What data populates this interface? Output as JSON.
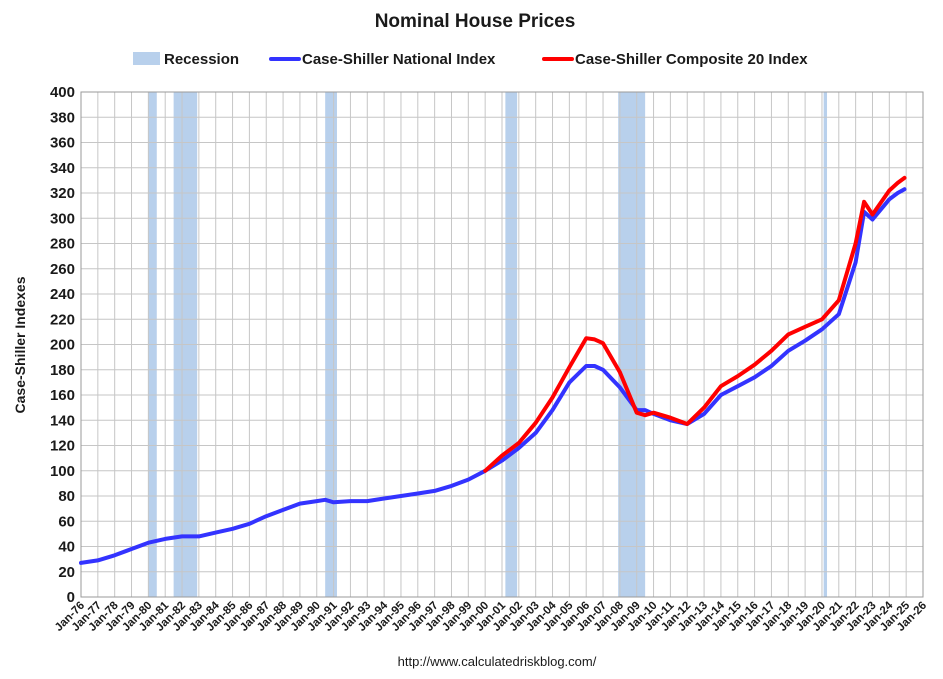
{
  "chart_data": {
    "type": "line",
    "title": "Nominal House Prices",
    "ylabel": "Case-Shiller Indexes",
    "xlabel": "",
    "ylim": [
      0,
      400
    ],
    "yticks": [
      0,
      20,
      40,
      60,
      80,
      100,
      120,
      140,
      160,
      180,
      200,
      220,
      240,
      260,
      280,
      300,
      320,
      340,
      360,
      380,
      400
    ],
    "xlim": [
      1976,
      2026
    ],
    "xtick_labels": [
      "Jan-76",
      "Jan-77",
      "Jan-78",
      "Jan-79",
      "Jan-80",
      "Jan-81",
      "Jan-82",
      "Jan-83",
      "Jan-84",
      "Jan-85",
      "Jan-86",
      "Jan-87",
      "Jan-88",
      "Jan-89",
      "Jan-90",
      "Jan-91",
      "Jan-92",
      "Jan-93",
      "Jan-94",
      "Jan-95",
      "Jan-96",
      "Jan-97",
      "Jan-98",
      "Jan-99",
      "Jan-00",
      "Jan-01",
      "Jan-02",
      "Jan-03",
      "Jan-04",
      "Jan-05",
      "Jan-06",
      "Jan-07",
      "Jan-08",
      "Jan-09",
      "Jan-10",
      "Jan-11",
      "Jan-12",
      "Jan-13",
      "Jan-14",
      "Jan-15",
      "Jan-16",
      "Jan-17",
      "Jan-18",
      "Jan-19",
      "Jan-20",
      "Jan-21",
      "Jan-22",
      "Jan-23",
      "Jan-24",
      "Jan-25",
      "Jan-26"
    ],
    "grid": true,
    "legend_position": "top",
    "legend": {
      "recession": "Recession",
      "national": "Case-Shiller National Index",
      "composite": "Case-Shiller Composite 20 Index"
    },
    "recessions": [
      [
        1980.0,
        1980.5
      ],
      [
        1981.5,
        1982.9
      ],
      [
        1990.5,
        1991.2
      ],
      [
        2001.2,
        2001.9
      ],
      [
        2007.9,
        2009.5
      ],
      [
        2020.1,
        2020.3
      ]
    ],
    "series": [
      {
        "name": "Case-Shiller National Index",
        "color": "#3333ff",
        "x": [
          1976.0,
          1977.0,
          1978.0,
          1979.0,
          1980.0,
          1981.0,
          1982.0,
          1983.0,
          1984.0,
          1985.0,
          1986.0,
          1987.0,
          1988.0,
          1989.0,
          1990.0,
          1990.5,
          1991.0,
          1992.0,
          1993.0,
          1994.0,
          1995.0,
          1996.0,
          1997.0,
          1998.0,
          1999.0,
          2000.0,
          2001.0,
          2002.0,
          2003.0,
          2004.0,
          2005.0,
          2006.0,
          2006.5,
          2007.0,
          2008.0,
          2009.0,
          2009.5,
          2010.0,
          2011.0,
          2012.0,
          2013.0,
          2014.0,
          2015.0,
          2016.0,
          2017.0,
          2018.0,
          2019.0,
          2020.0,
          2021.0,
          2022.0,
          2022.5,
          2023.0,
          2024.0,
          2024.5,
          2024.9
        ],
        "values": [
          27,
          29,
          33,
          38,
          43,
          46,
          48,
          48,
          51,
          54,
          58,
          64,
          69,
          74,
          76,
          77,
          75,
          76,
          76,
          78,
          80,
          82,
          84,
          88,
          93,
          100,
          108,
          118,
          130,
          148,
          170,
          183,
          183,
          180,
          166,
          148,
          148,
          145,
          140,
          137,
          145,
          160,
          167,
          174,
          183,
          195,
          203,
          212,
          224,
          265,
          305,
          299,
          315,
          320,
          323
        ]
      },
      {
        "name": "Case-Shiller Composite 20 Index",
        "color": "#ff0000",
        "x": [
          2000.0,
          2001.0,
          2002.0,
          2003.0,
          2004.0,
          2005.0,
          2006.0,
          2006.5,
          2007.0,
          2008.0,
          2009.0,
          2009.5,
          2010.0,
          2011.0,
          2012.0,
          2013.0,
          2014.0,
          2015.0,
          2016.0,
          2017.0,
          2018.0,
          2019.0,
          2020.0,
          2021.0,
          2022.0,
          2022.5,
          2023.0,
          2024.0,
          2024.5,
          2024.9
        ],
        "values": [
          100,
          112,
          122,
          138,
          158,
          182,
          205,
          204,
          201,
          178,
          146,
          144,
          146,
          142,
          137,
          150,
          167,
          175,
          184,
          195,
          208,
          214,
          220,
          235,
          280,
          313,
          303,
          322,
          328,
          332
        ]
      }
    ]
  },
  "footer": {
    "url": "http://www.calculatedriskblog.com/"
  }
}
